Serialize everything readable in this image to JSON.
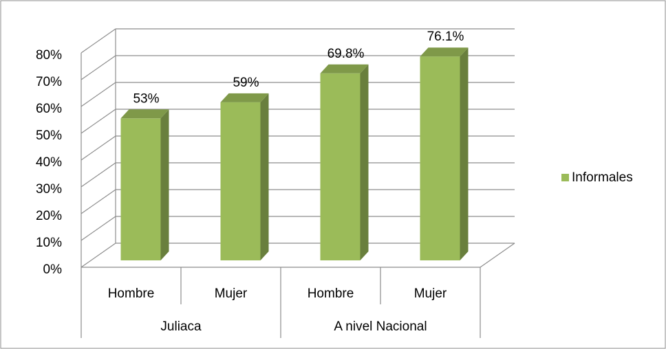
{
  "chart_data": {
    "type": "bar3d",
    "groups": [
      {
        "name": "Juliaca",
        "categories": [
          "Hombre",
          "Mujer"
        ]
      },
      {
        "name": "A nivel Nacional",
        "categories": [
          "Hombre",
          "Mujer"
        ]
      }
    ],
    "series": [
      {
        "name": "Informales",
        "color": "#9bbb59",
        "values": [
          53,
          59,
          69.8,
          76.1
        ],
        "value_labels": [
          "53%",
          "59%",
          "69.8%",
          "76.1%"
        ]
      }
    ],
    "ylim": [
      0,
      80
    ],
    "yticks": [
      {
        "value": 0,
        "label": "0%"
      },
      {
        "value": 10,
        "label": "10%"
      },
      {
        "value": 20,
        "label": "20%"
      },
      {
        "value": 30,
        "label": "30%"
      },
      {
        "value": 40,
        "label": "40%"
      },
      {
        "value": 50,
        "label": "50%"
      },
      {
        "value": 60,
        "label": "60%"
      },
      {
        "value": 70,
        "label": "70%"
      },
      {
        "value": 80,
        "label": "80%"
      }
    ],
    "grid": true,
    "legend": "right"
  }
}
